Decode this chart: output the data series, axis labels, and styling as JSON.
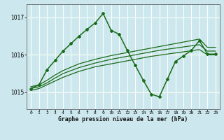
{
  "background_color": "#cce8ee",
  "grid_color": "#ffffff",
  "line_color": "#1a6b1a",
  "title": "Graphe pression niveau de la mer (hPa)",
  "ylabel_ticks": [
    1015,
    1016,
    1017
  ],
  "xlim": [
    -0.5,
    23.5
  ],
  "ylim": [
    1014.55,
    1017.35
  ],
  "smooth_lines": [
    [
      1015.05,
      1015.1,
      1015.2,
      1015.3,
      1015.4,
      1015.48,
      1015.56,
      1015.62,
      1015.68,
      1015.72,
      1015.76,
      1015.8,
      1015.84,
      1015.88,
      1015.92,
      1015.96,
      1015.99,
      1016.02,
      1016.05,
      1016.08,
      1016.11,
      1016.14,
      1016.0,
      1016.0
    ],
    [
      1015.1,
      1015.15,
      1015.25,
      1015.38,
      1015.5,
      1015.58,
      1015.66,
      1015.72,
      1015.78,
      1015.83,
      1015.88,
      1015.92,
      1015.96,
      1016.0,
      1016.04,
      1016.08,
      1016.12,
      1016.15,
      1016.18,
      1016.21,
      1016.24,
      1016.27,
      1016.1,
      1016.1
    ],
    [
      1015.15,
      1015.2,
      1015.32,
      1015.46,
      1015.58,
      1015.67,
      1015.76,
      1015.82,
      1015.88,
      1015.93,
      1015.98,
      1016.02,
      1016.06,
      1016.1,
      1016.14,
      1016.18,
      1016.22,
      1016.26,
      1016.3,
      1016.34,
      1016.38,
      1016.42,
      1016.2,
      1016.2
    ]
  ],
  "volatile_line": {
    "x": [
      0,
      1,
      2,
      3,
      4,
      5,
      6,
      7,
      8,
      9,
      10,
      11,
      12,
      13,
      14,
      15,
      16,
      17,
      18,
      19,
      20,
      21,
      22,
      23
    ],
    "y": [
      1015.1,
      1015.2,
      1015.6,
      1015.85,
      1016.1,
      1016.3,
      1016.5,
      1016.68,
      1016.85,
      1017.1,
      1016.65,
      1016.55,
      1016.12,
      1015.72,
      1015.32,
      1014.95,
      1014.88,
      1015.35,
      1015.82,
      1015.97,
      1016.12,
      1016.38,
      1016.02,
      1016.02
    ]
  }
}
